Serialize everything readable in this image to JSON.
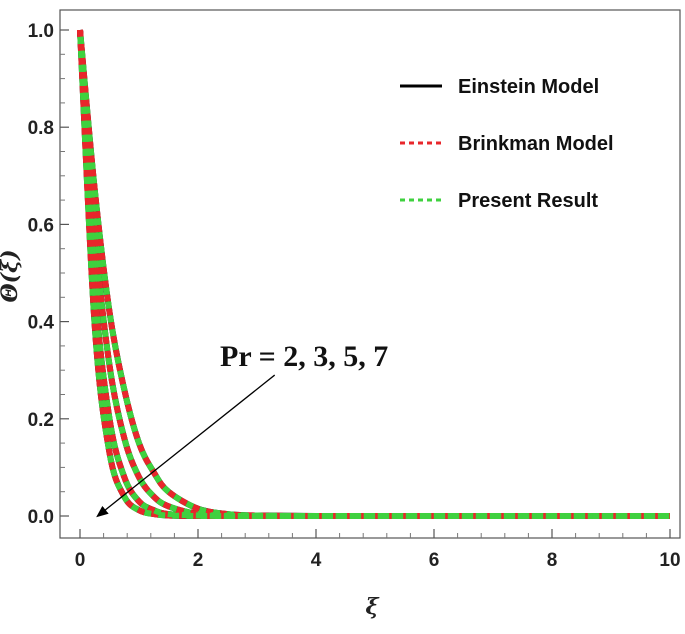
{
  "chart_data": {
    "type": "line",
    "title": "",
    "xlabel": "ξ",
    "ylabel": "Θ(ξ)",
    "xlim": [
      0,
      10
    ],
    "ylim": [
      0,
      1.0
    ],
    "x_ticks": [
      "0",
      "2",
      "4",
      "6",
      "8",
      "10"
    ],
    "y_ticks": [
      "0.0",
      "0.2",
      "0.4",
      "0.6",
      "0.8",
      "1.0"
    ],
    "x": [
      0,
      0.25,
      0.5,
      0.75,
      1.0,
      1.25,
      1.5,
      2.0,
      2.5,
      3.0,
      4.0,
      6.0,
      8.0,
      10.0
    ],
    "series": [
      {
        "name": "Einstein Model",
        "color": "#000000",
        "style": "solid",
        "curves": [
          {
            "param": "Pr = 2",
            "values": [
              1.0,
              0.67,
              0.42,
              0.26,
              0.15,
              0.09,
              0.05,
              0.015,
              0.004,
              0.001,
              0,
              0,
              0,
              0
            ]
          },
          {
            "param": "Pr = 3",
            "values": [
              1.0,
              0.58,
              0.31,
              0.16,
              0.08,
              0.04,
              0.02,
              0.004,
              0.001,
              0,
              0,
              0,
              0,
              0
            ]
          },
          {
            "param": "Pr = 5",
            "values": [
              1.0,
              0.47,
              0.2,
              0.08,
              0.03,
              0.012,
              0.004,
              0.001,
              0,
              0,
              0,
              0,
              0,
              0
            ]
          },
          {
            "param": "Pr = 7",
            "values": [
              1.0,
              0.39,
              0.13,
              0.04,
              0.012,
              0.004,
              0.001,
              0,
              0,
              0,
              0,
              0,
              0,
              0
            ]
          }
        ]
      },
      {
        "name": "Brinkman Model",
        "color": "#e8262b",
        "style": "dashed",
        "curves": [
          {
            "param": "Pr = 2",
            "values": [
              1.0,
              0.67,
              0.42,
              0.26,
              0.15,
              0.09,
              0.05,
              0.015,
              0.004,
              0.001,
              0,
              0,
              0,
              0
            ]
          },
          {
            "param": "Pr = 3",
            "values": [
              1.0,
              0.58,
              0.31,
              0.16,
              0.08,
              0.04,
              0.02,
              0.004,
              0.001,
              0,
              0,
              0,
              0,
              0
            ]
          },
          {
            "param": "Pr = 5",
            "values": [
              1.0,
              0.47,
              0.2,
              0.08,
              0.03,
              0.012,
              0.004,
              0.001,
              0,
              0,
              0,
              0,
              0,
              0
            ]
          },
          {
            "param": "Pr = 7",
            "values": [
              1.0,
              0.39,
              0.13,
              0.04,
              0.012,
              0.004,
              0.001,
              0,
              0,
              0,
              0,
              0,
              0,
              0
            ]
          }
        ]
      },
      {
        "name": "Present Result",
        "color": "#3fd13f",
        "style": "dashed",
        "curves": [
          {
            "param": "Pr = 2",
            "values": [
              1.0,
              0.67,
              0.42,
              0.26,
              0.15,
              0.09,
              0.05,
              0.015,
              0.004,
              0.001,
              0,
              0,
              0,
              0
            ]
          },
          {
            "param": "Pr = 3",
            "values": [
              1.0,
              0.58,
              0.31,
              0.16,
              0.08,
              0.04,
              0.02,
              0.004,
              0.001,
              0,
              0,
              0,
              0,
              0
            ]
          },
          {
            "param": "Pr = 5",
            "values": [
              1.0,
              0.47,
              0.2,
              0.08,
              0.03,
              0.012,
              0.004,
              0.001,
              0,
              0,
              0,
              0,
              0,
              0
            ]
          },
          {
            "param": "Pr = 7",
            "values": [
              1.0,
              0.39,
              0.13,
              0.04,
              0.012,
              0.004,
              0.001,
              0,
              0,
              0,
              0,
              0,
              0,
              0
            ]
          }
        ]
      }
    ],
    "legend": {
      "placement": "top-right",
      "entries": [
        "Einstein Model",
        "Brinkman Model",
        "Present Result"
      ]
    },
    "annotation": {
      "text": "Pr =  2, 3, 5, 7",
      "arrow_from": [
        3.3,
        0.29
      ],
      "arrow_to": [
        0.3,
        0.0
      ]
    }
  }
}
